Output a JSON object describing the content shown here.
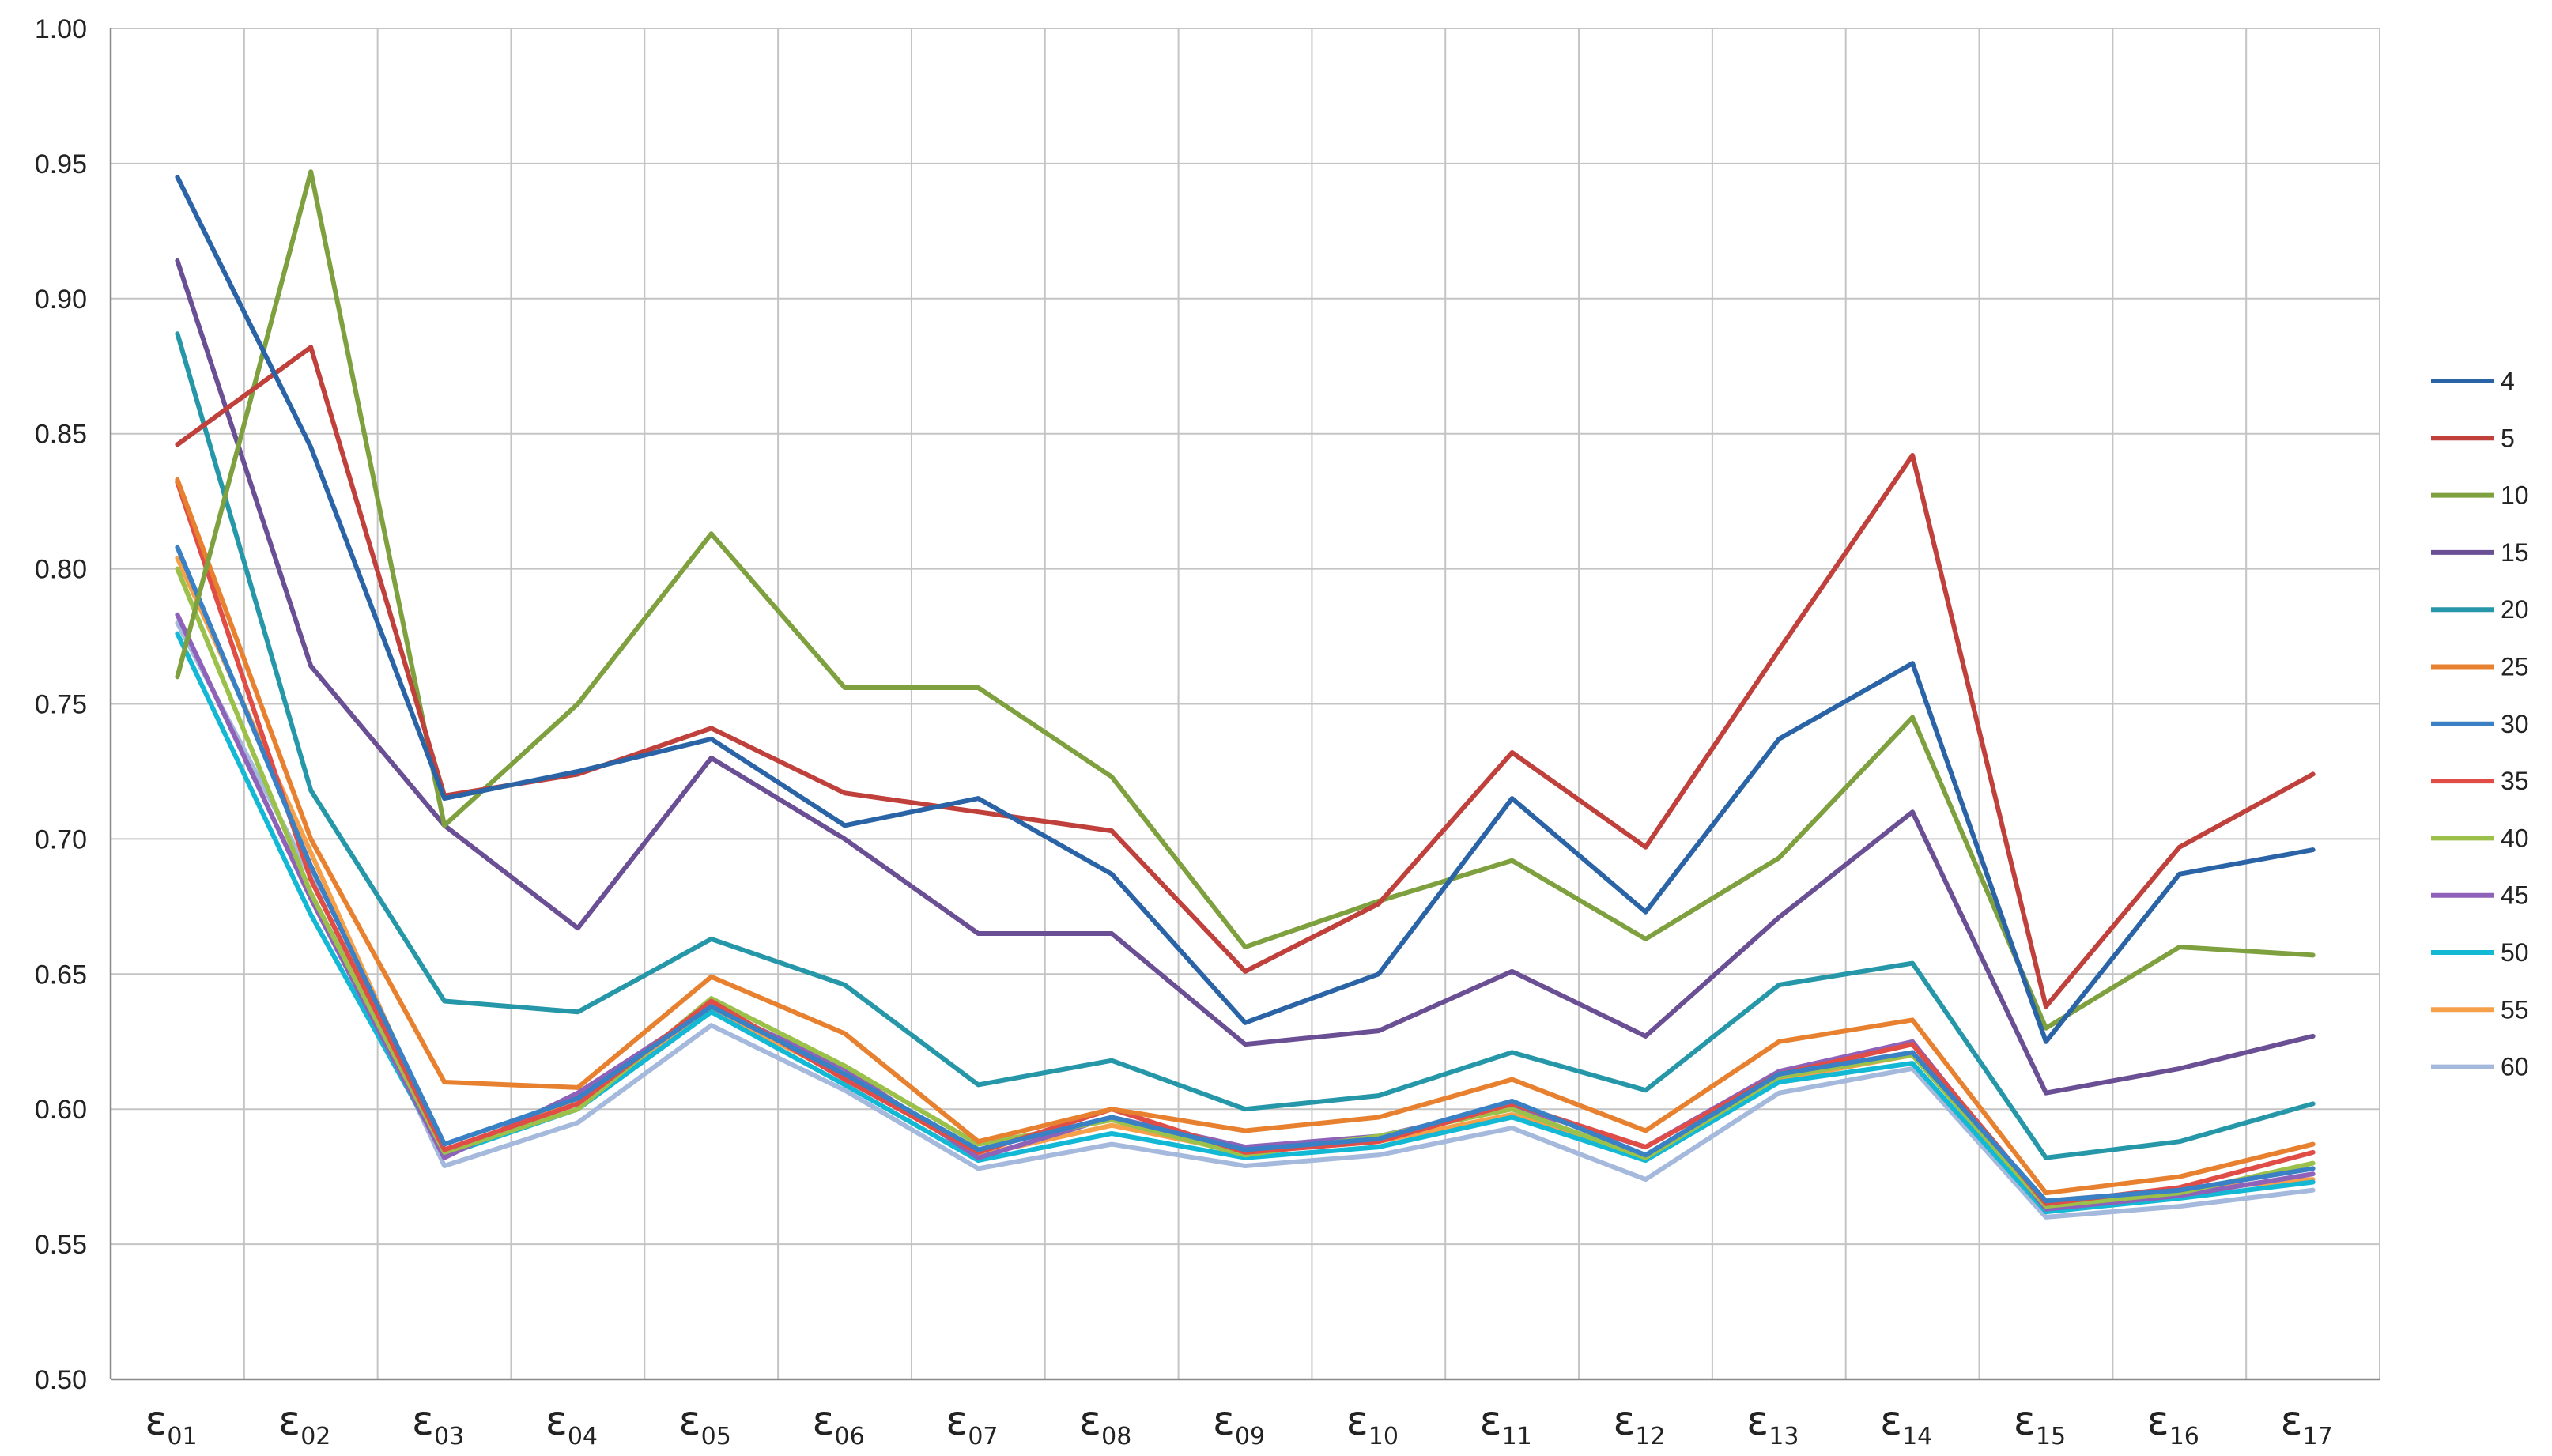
{
  "chart_data": {
    "type": "line",
    "title": "",
    "xlabel": "",
    "ylabel": "",
    "ylim": [
      0.5,
      1.0
    ],
    "yticks": [
      "0.50",
      "0.55",
      "0.60",
      "0.65",
      "0.70",
      "0.75",
      "0.80",
      "0.85",
      "0.90",
      "0.95",
      "1.00"
    ],
    "grid": true,
    "legend_position": "right",
    "categories": [
      {
        "base": "ε",
        "sub": "01"
      },
      {
        "base": "ε",
        "sub": "02"
      },
      {
        "base": "ε",
        "sub": "03"
      },
      {
        "base": "ε",
        "sub": "04"
      },
      {
        "base": "ε",
        "sub": "05"
      },
      {
        "base": "ε",
        "sub": "06"
      },
      {
        "base": "ε",
        "sub": "07"
      },
      {
        "base": "ε",
        "sub": "08"
      },
      {
        "base": "ε",
        "sub": "09"
      },
      {
        "base": "ε",
        "sub": "10"
      },
      {
        "base": "ε",
        "sub": "11"
      },
      {
        "base": "ε",
        "sub": "12"
      },
      {
        "base": "ε",
        "sub": "13"
      },
      {
        "base": "ε",
        "sub": "14"
      },
      {
        "base": "ε",
        "sub": "15"
      },
      {
        "base": "ε",
        "sub": "16"
      },
      {
        "base": "ε",
        "sub": "17"
      }
    ],
    "series": [
      {
        "name": "4",
        "color": "#2a64a6",
        "values": [
          0.945,
          0.845,
          0.715,
          0.725,
          0.737,
          0.705,
          0.715,
          0.687,
          0.632,
          0.65,
          0.715,
          0.673,
          0.737,
          0.765,
          0.625,
          0.687,
          0.696
        ]
      },
      {
        "name": "5",
        "color": "#c0403c",
        "values": [
          0.846,
          0.882,
          0.716,
          0.724,
          0.741,
          0.717,
          0.71,
          0.703,
          0.651,
          0.676,
          0.732,
          0.697,
          0.77,
          0.842,
          0.638,
          0.697,
          0.724
        ]
      },
      {
        "name": "10",
        "color": "#7ea03e",
        "values": [
          0.76,
          0.947,
          0.705,
          0.75,
          0.813,
          0.756,
          0.756,
          0.723,
          0.66,
          0.677,
          0.692,
          0.663,
          0.693,
          0.745,
          0.63,
          0.66,
          0.657
        ]
      },
      {
        "name": "15",
        "color": "#6a4f94",
        "values": [
          0.914,
          0.764,
          0.705,
          0.667,
          0.73,
          0.7,
          0.665,
          0.665,
          0.624,
          0.629,
          0.651,
          0.627,
          0.671,
          0.71,
          0.606,
          0.615,
          0.627
        ]
      },
      {
        "name": "20",
        "color": "#2597a8",
        "values": [
          0.887,
          0.718,
          0.64,
          0.636,
          0.663,
          0.646,
          0.609,
          0.618,
          0.6,
          0.605,
          0.621,
          0.607,
          0.646,
          0.654,
          0.582,
          0.588,
          0.602
        ]
      },
      {
        "name": "25",
        "color": "#e8812f",
        "values": [
          0.833,
          0.7,
          0.61,
          0.608,
          0.649,
          0.628,
          0.588,
          0.6,
          0.592,
          0.597,
          0.611,
          0.592,
          0.625,
          0.633,
          0.569,
          0.575,
          0.587
        ]
      },
      {
        "name": "30",
        "color": "#3a80c4",
        "values": [
          0.808,
          0.69,
          0.587,
          0.604,
          0.638,
          0.613,
          0.585,
          0.597,
          0.585,
          0.589,
          0.603,
          0.583,
          0.613,
          0.621,
          0.566,
          0.57,
          0.578
        ]
      },
      {
        "name": "35",
        "color": "#e04d47",
        "values": [
          0.832,
          0.685,
          0.585,
          0.602,
          0.64,
          0.611,
          0.584,
          0.6,
          0.584,
          0.588,
          0.602,
          0.586,
          0.613,
          0.624,
          0.565,
          0.571,
          0.584
        ]
      },
      {
        "name": "40",
        "color": "#9bc14a",
        "values": [
          0.8,
          0.68,
          0.584,
          0.6,
          0.641,
          0.616,
          0.587,
          0.596,
          0.583,
          0.59,
          0.6,
          0.582,
          0.612,
          0.62,
          0.564,
          0.569,
          0.58
        ]
      },
      {
        "name": "45",
        "color": "#8e62b8",
        "values": [
          0.783,
          0.678,
          0.582,
          0.606,
          0.638,
          0.615,
          0.582,
          0.597,
          0.586,
          0.59,
          0.601,
          0.586,
          0.614,
          0.625,
          0.563,
          0.568,
          0.576
        ]
      },
      {
        "name": "50",
        "color": "#13b8d4",
        "values": [
          0.776,
          0.672,
          0.583,
          0.6,
          0.636,
          0.609,
          0.581,
          0.591,
          0.582,
          0.586,
          0.597,
          0.581,
          0.61,
          0.617,
          0.562,
          0.567,
          0.573
        ]
      },
      {
        "name": "55",
        "color": "#f6a04a",
        "values": [
          0.804,
          0.695,
          0.584,
          0.603,
          0.637,
          0.612,
          0.583,
          0.594,
          0.584,
          0.588,
          0.598,
          0.583,
          0.611,
          0.62,
          0.566,
          0.57,
          0.574
        ]
      },
      {
        "name": "60",
        "color": "#a5b9dc",
        "values": [
          0.78,
          0.686,
          0.579,
          0.595,
          0.631,
          0.607,
          0.578,
          0.587,
          0.579,
          0.583,
          0.593,
          0.574,
          0.606,
          0.615,
          0.56,
          0.564,
          0.57
        ]
      }
    ]
  }
}
